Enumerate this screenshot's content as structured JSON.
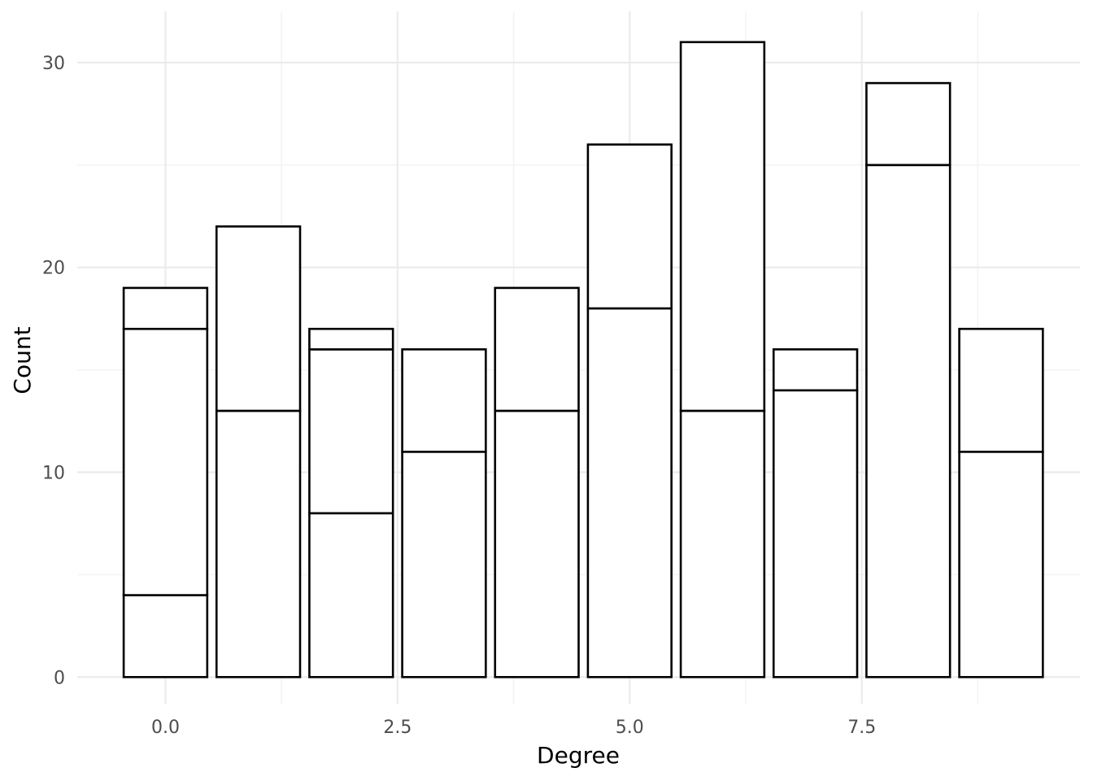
{
  "chart_data": {
    "type": "bar",
    "stacked": true,
    "title": "",
    "xlabel": "Degree",
    "ylabel": "Count",
    "x": [
      0,
      1,
      2,
      3,
      4,
      5,
      6,
      7,
      8,
      9
    ],
    "stack_segments": [
      [
        4,
        13,
        2
      ],
      [
        13,
        9
      ],
      [
        8,
        8,
        1
      ],
      [
        11,
        5
      ],
      [
        13,
        6
      ],
      [
        18,
        8
      ],
      [
        13,
        18
      ],
      [
        14,
        2
      ],
      [
        25,
        4
      ],
      [
        11,
        6
      ]
    ],
    "totals": [
      19,
      22,
      17,
      16,
      19,
      26,
      31,
      16,
      29,
      17
    ],
    "xlim": [
      -0.95,
      9.85
    ],
    "ylim": [
      -1.3,
      32.5
    ],
    "x_ticks": [
      0,
      2.5,
      5,
      7.5
    ],
    "x_tick_labels": [
      "0.0",
      "2.5",
      "5.0",
      "7.5"
    ],
    "y_ticks": [
      0,
      10,
      20,
      30
    ],
    "y_tick_labels": [
      "0",
      "10",
      "20",
      "30"
    ],
    "grid": true,
    "legend": "none",
    "colors": {
      "bar_fill": "#ffffff",
      "bar_stroke": "#000000",
      "grid": "#ebebeb"
    }
  }
}
